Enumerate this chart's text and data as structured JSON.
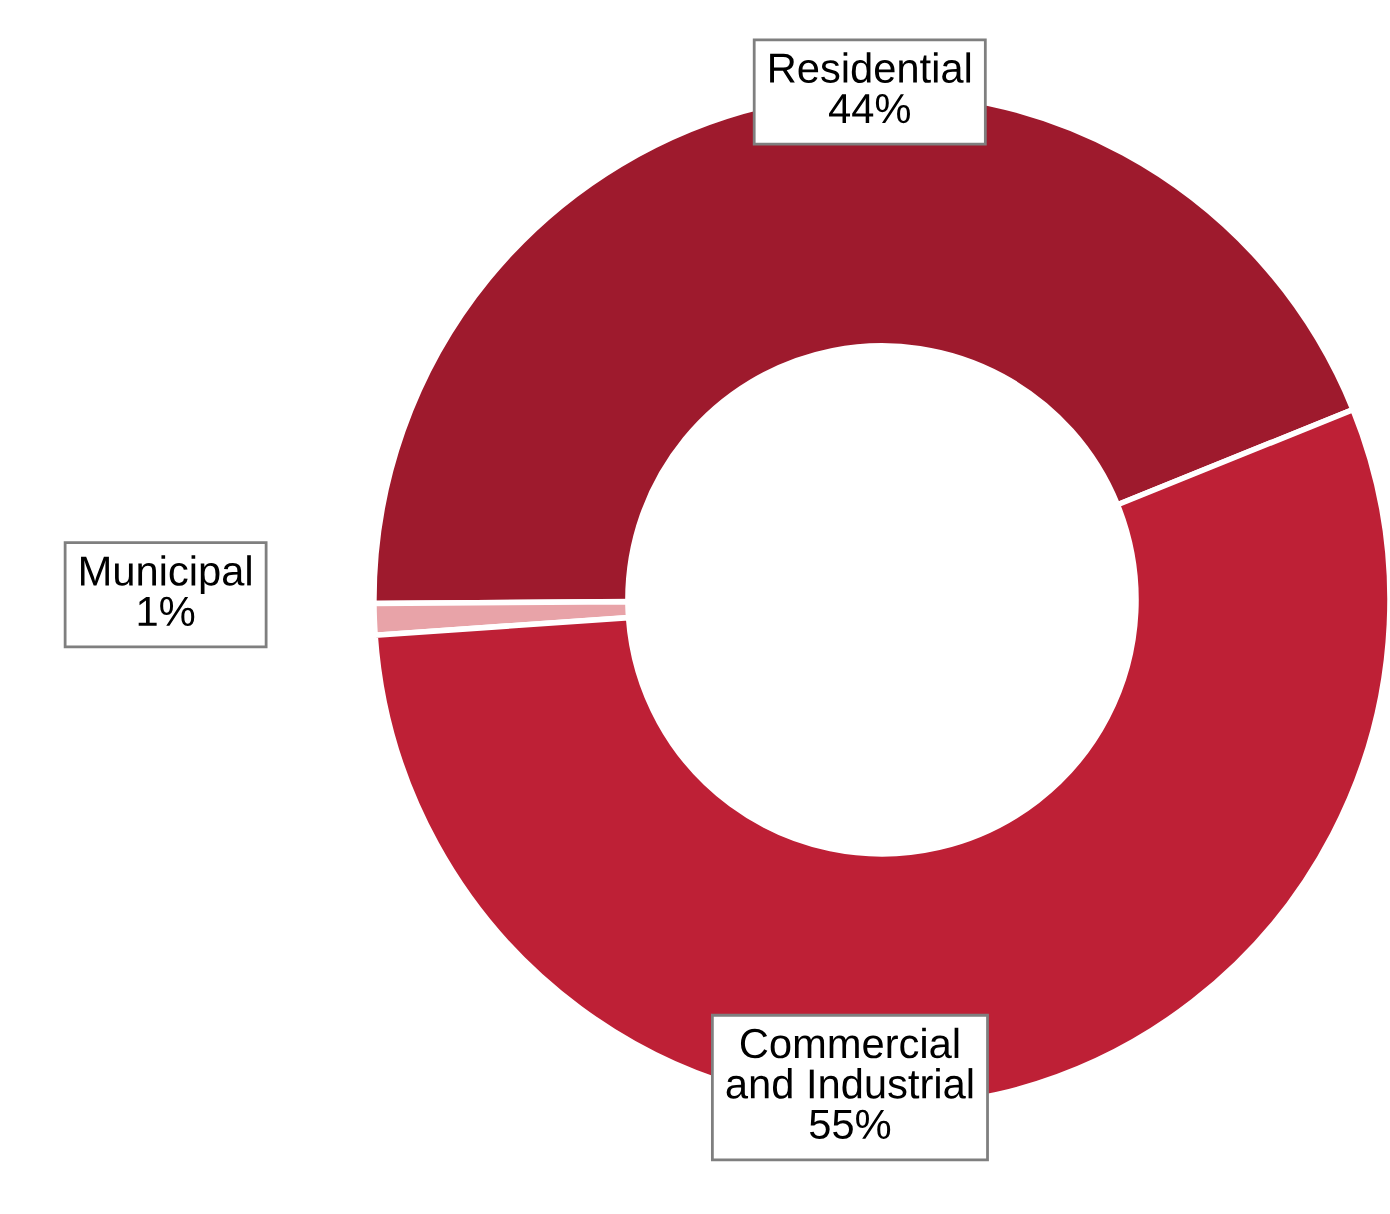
{
  "chart_data": {
    "type": "donut",
    "categories": [
      "Residential",
      "Municipal",
      "Commercial\nand Industrial"
    ],
    "values": [
      44,
      1,
      55
    ],
    "colors": [
      "#9e1a2d",
      "#e8a3a8",
      "#be2036"
    ],
    "value_labels": [
      "44%",
      "1%",
      "55%"
    ],
    "legend": false
  }
}
